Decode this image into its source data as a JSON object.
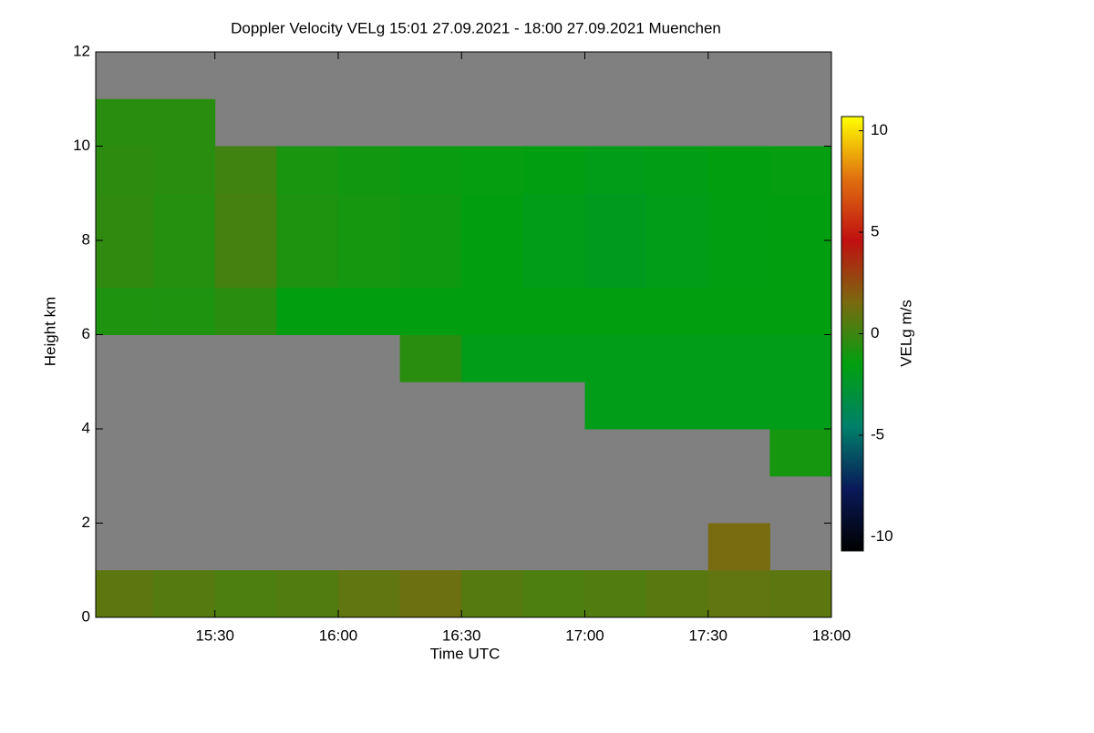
{
  "chart_data": {
    "type": "heatmap",
    "title": "Doppler Velocity VELg   15:01 27.09.2021 - 18:00 27.09.2021 Muenchen",
    "x_label": "Time UTC",
    "y_label": "Height km",
    "colorbar_label": "VELg m/s",
    "x_edges": [
      15.0167,
      15.25,
      15.5,
      15.75,
      16.0,
      16.25,
      16.5,
      16.75,
      17.0,
      17.25,
      17.5,
      17.75,
      18.0
    ],
    "y_edges": [
      0,
      1,
      2,
      3,
      4,
      5,
      6,
      7,
      8,
      9,
      10,
      11,
      12
    ],
    "z": [
      [
        0.8,
        0.6,
        0.4,
        0.5,
        0.9,
        1.2,
        0.6,
        0.4,
        0.5,
        0.7,
        0.9,
        0.8
      ],
      [
        null,
        null,
        null,
        null,
        null,
        null,
        null,
        null,
        null,
        null,
        1.5,
        null
      ],
      [
        null,
        null,
        null,
        null,
        null,
        null,
        null,
        null,
        null,
        null,
        null,
        null
      ],
      [
        null,
        null,
        null,
        null,
        null,
        null,
        null,
        null,
        null,
        null,
        null,
        -1
      ],
      [
        null,
        null,
        null,
        null,
        null,
        null,
        null,
        null,
        -1.8,
        -1.8,
        -1.8,
        -1.8
      ],
      [
        null,
        null,
        null,
        null,
        null,
        -0.5,
        -1.8,
        -1.8,
        -1.8,
        -1.8,
        -1.8,
        -1.8
      ],
      [
        -0.8,
        -0.8,
        -0.5,
        -1.5,
        -1.5,
        -1.5,
        -1.5,
        -1.5,
        -1.5,
        -1.5,
        -1.5,
        -1.5
      ],
      [
        -0.3,
        -0.6,
        0.2,
        -0.8,
        -1.0,
        -1.2,
        -1.5,
        -1.8,
        -2.0,
        -1.8,
        -1.6,
        -1.5
      ],
      [
        -0.3,
        -0.6,
        0.2,
        -0.8,
        -1.0,
        -1.2,
        -1.5,
        -1.8,
        -2.0,
        -1.8,
        -1.6,
        -1.5
      ],
      [
        -0.4,
        -0.5,
        0.1,
        -0.9,
        -1.1,
        -1.3,
        -1.4,
        -1.6,
        -1.8,
        -1.7,
        -1.5,
        -1.4
      ],
      [
        -0.5,
        -0.5,
        null,
        null,
        null,
        null,
        null,
        null,
        null,
        null,
        null,
        null
      ],
      [
        null,
        null,
        null,
        null,
        null,
        null,
        null,
        null,
        null,
        null,
        null,
        null
      ]
    ],
    "xlim": [
      15.0167,
      18.0
    ],
    "xticks": [
      {
        "value": 15.5,
        "label": "15:30"
      },
      {
        "value": 16.0,
        "label": "16:00"
      },
      {
        "value": 16.5,
        "label": "16:30"
      },
      {
        "value": 17.0,
        "label": "17:00"
      },
      {
        "value": 17.5,
        "label": "17:30"
      },
      {
        "value": 18.0,
        "label": "18:00"
      }
    ],
    "ylim": [
      0,
      12
    ],
    "yticks": [
      0,
      2,
      4,
      6,
      8,
      10,
      12
    ],
    "zlim": [
      -10.7,
      10.7
    ],
    "zticks": [
      -10,
      -5,
      0,
      5,
      10
    ],
    "colormap": [
      "#000000",
      "#0a1a5a",
      "#00806a",
      "#00a010",
      "#7a6a10",
      "#c01010",
      "#e07010",
      "#ffff00"
    ],
    "missing_color": "#808080"
  }
}
